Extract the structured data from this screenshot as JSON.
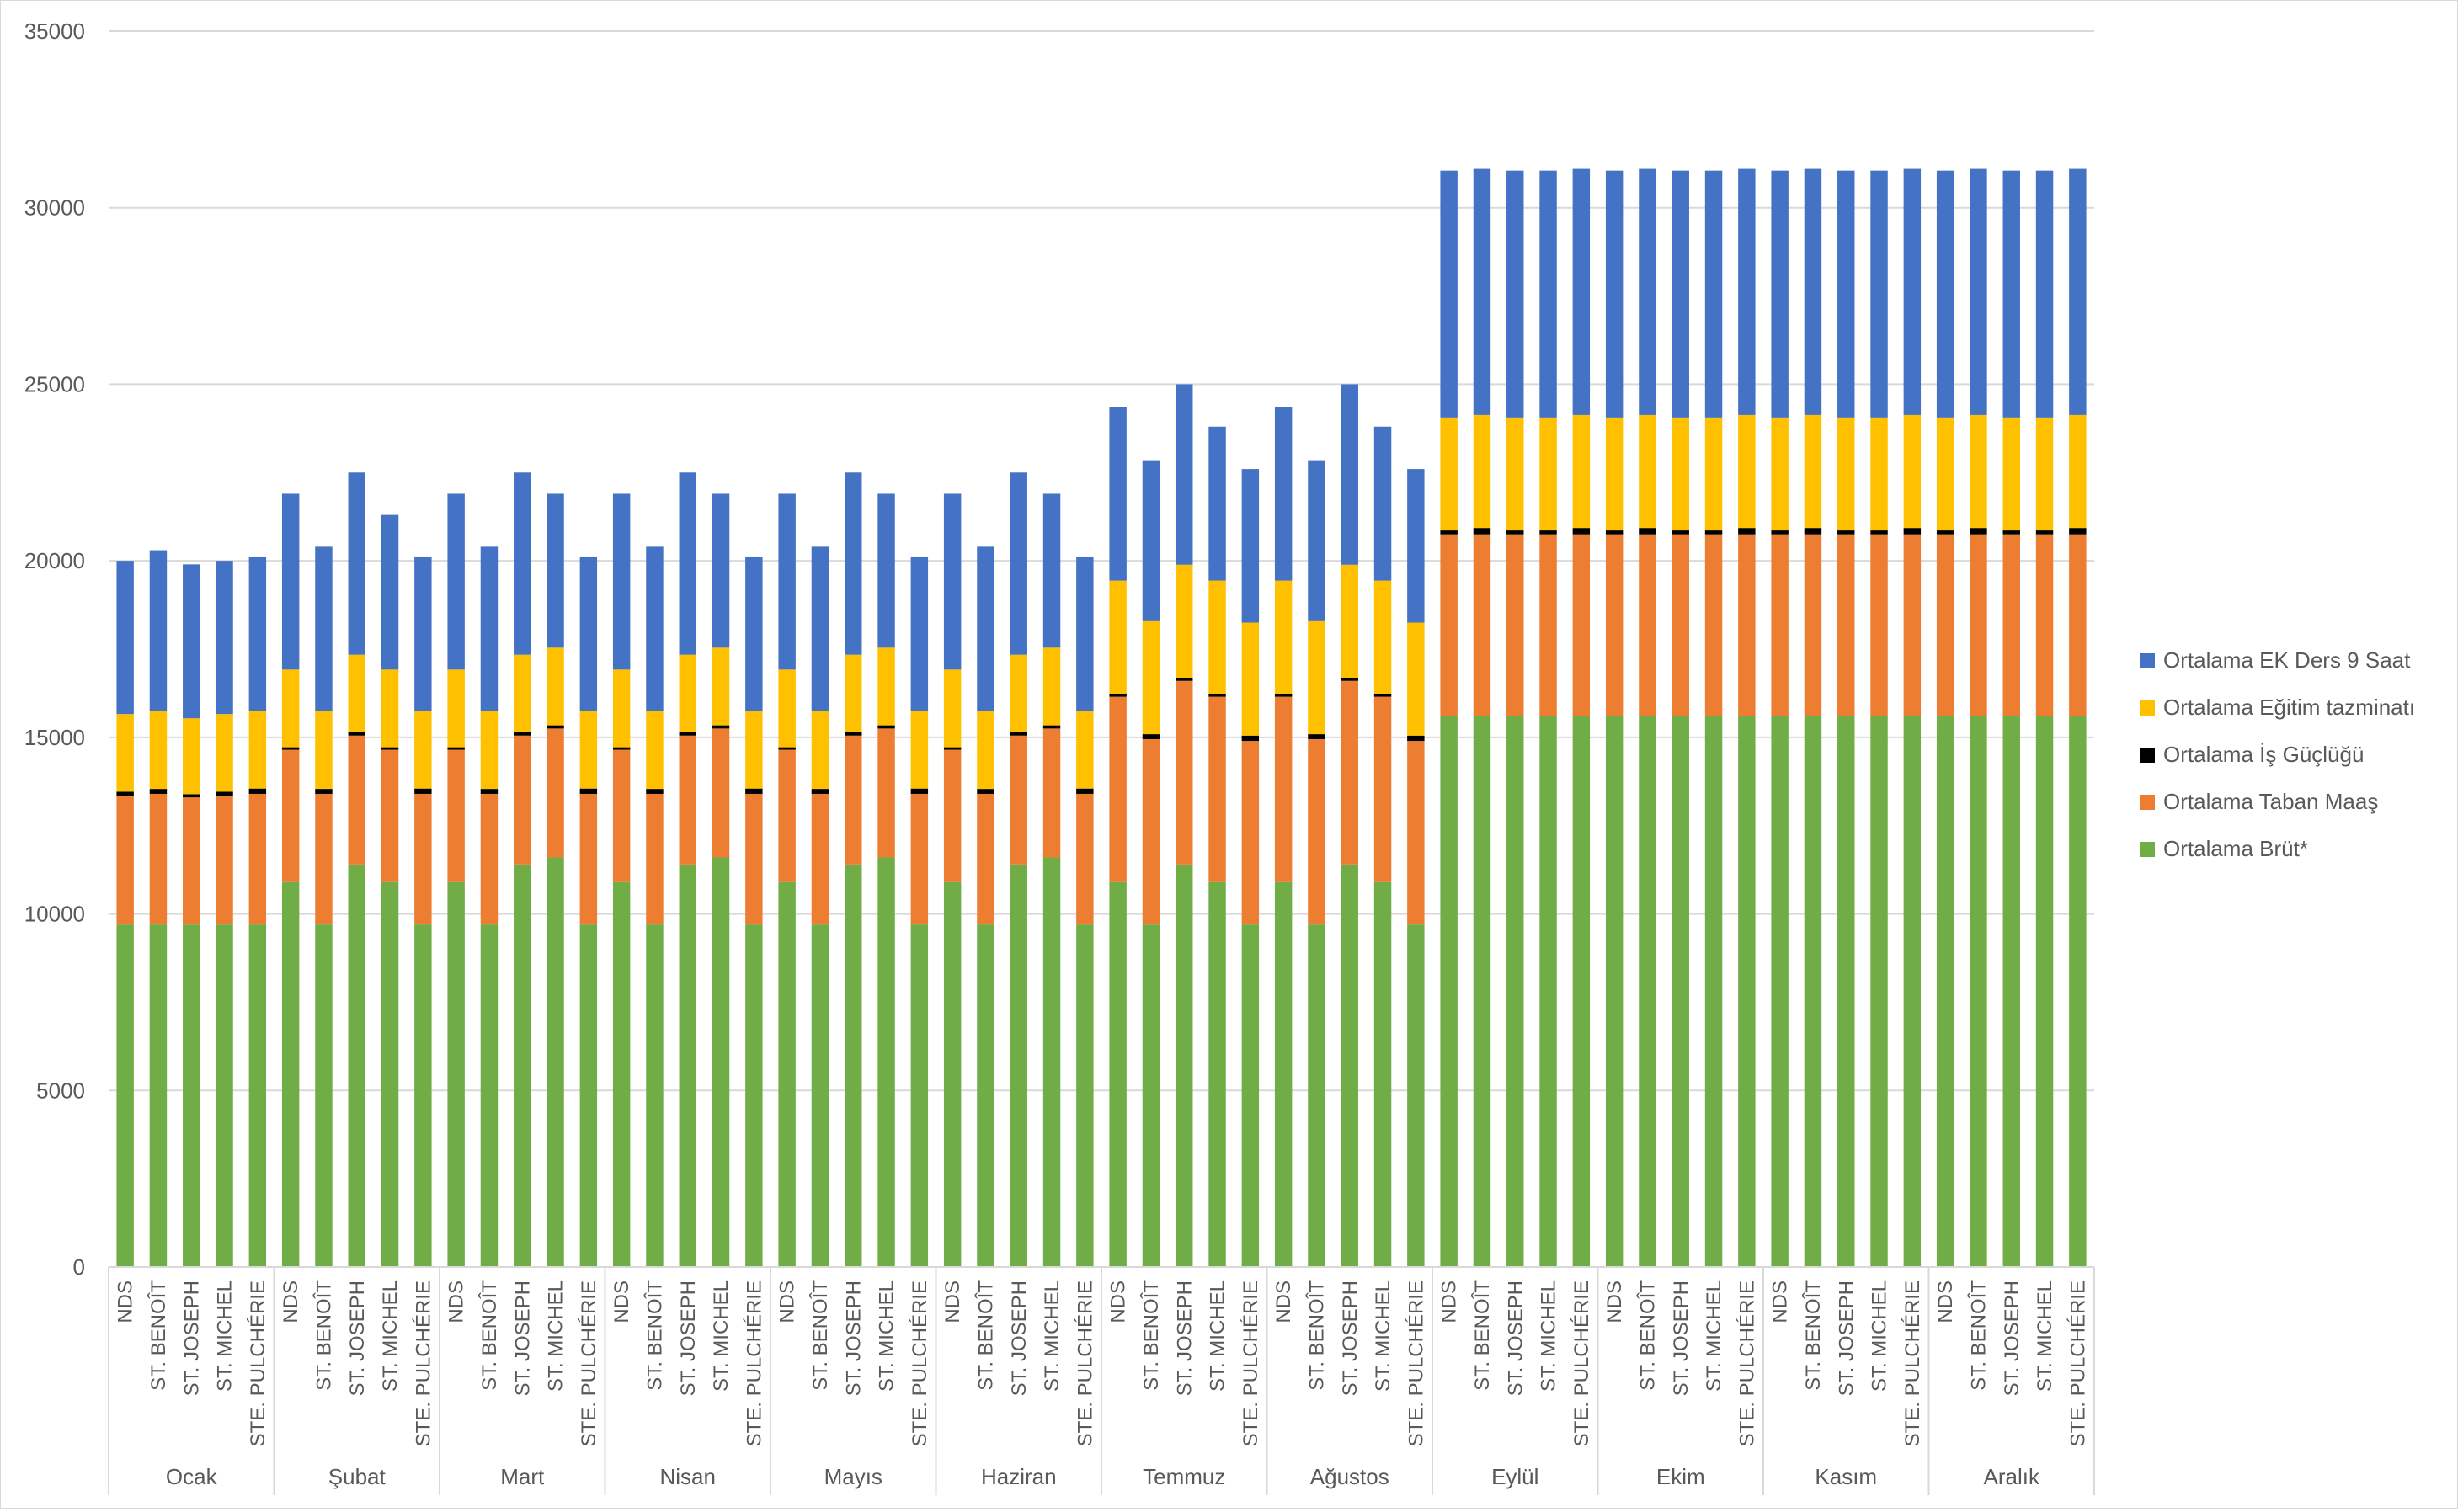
{
  "chart_data": {
    "type": "bar",
    "stacked": true,
    "title": "",
    "xlabel": "",
    "ylabel": "",
    "ylim": [
      0,
      35000
    ],
    "yticks": [
      0,
      5000,
      10000,
      15000,
      20000,
      25000,
      30000,
      35000
    ],
    "grid": true,
    "legend_position": "right",
    "months": [
      "Ocak",
      "Şubat",
      "Mart",
      "Nisan",
      "Mayıs",
      "Haziran",
      "Temmuz",
      "Ağustos",
      "Eylül",
      "Ekim",
      "Kasım",
      "Aralık"
    ],
    "schools": [
      "NDS",
      "ST. BENOÎT",
      "ST. JOSEPH",
      "ST. MICHEL",
      "STE. PULCHÉRIE"
    ],
    "series": [
      {
        "name": "Ortalama Brüt*",
        "color": "#70ad47",
        "values": [
          9700,
          9700,
          9700,
          9700,
          9700,
          10900,
          9700,
          11400,
          10900,
          9700,
          10900,
          9700,
          11400,
          11600,
          9700,
          10900,
          9700,
          11400,
          11600,
          9700,
          10900,
          9700,
          11400,
          11600,
          9700,
          10900,
          9700,
          11400,
          11600,
          9700,
          10900,
          9700,
          11400,
          10900,
          9700,
          10900,
          9700,
          11400,
          10900,
          9700,
          15600,
          15600,
          15600,
          15600,
          15600,
          15600,
          15600,
          15600,
          15600,
          15600,
          15600,
          15600,
          15600,
          15600,
          15600,
          15600,
          15600,
          15600,
          15600,
          15600
        ]
      },
      {
        "name": "Ortalama Taban Maaş",
        "color": "#ed7d31",
        "values": [
          3650,
          3700,
          3600,
          3650,
          3700,
          3750,
          3700,
          3650,
          3750,
          3700,
          3750,
          3700,
          3650,
          3650,
          3700,
          3750,
          3700,
          3650,
          3650,
          3700,
          3750,
          3700,
          3650,
          3650,
          3700,
          3750,
          3700,
          3650,
          3650,
          3700,
          5250,
          5250,
          5200,
          5250,
          5200,
          5250,
          5250,
          5200,
          5250,
          5200,
          5150,
          5150,
          5150,
          5150,
          5150,
          5150,
          5150,
          5150,
          5150,
          5150,
          5150,
          5150,
          5150,
          5150,
          5150,
          5150,
          5150,
          5150,
          5150,
          5150
        ]
      },
      {
        "name": "Ortalama İş Güçlüğü",
        "color": "#000000",
        "values": [
          110,
          140,
          90,
          110,
          150,
          70,
          140,
          90,
          70,
          150,
          70,
          140,
          90,
          90,
          150,
          70,
          140,
          90,
          90,
          150,
          70,
          140,
          90,
          90,
          150,
          70,
          140,
          90,
          90,
          150,
          90,
          140,
          90,
          90,
          150,
          90,
          140,
          90,
          90,
          150,
          110,
          180,
          110,
          110,
          180,
          110,
          180,
          110,
          110,
          180,
          110,
          180,
          110,
          110,
          180,
          110,
          180,
          110,
          110,
          180
        ]
      },
      {
        "name": "Ortalama Eğitim tazminatı",
        "color": "#ffc000",
        "values": [
          2200,
          2200,
          2150,
          2200,
          2200,
          2200,
          2200,
          2200,
          2200,
          2200,
          2200,
          2200,
          2200,
          2200,
          2200,
          2200,
          2200,
          2200,
          2200,
          2200,
          2200,
          2200,
          2200,
          2200,
          2200,
          2200,
          2200,
          2200,
          2200,
          2200,
          3200,
          3200,
          3200,
          3200,
          3200,
          3200,
          3200,
          3200,
          3200,
          3200,
          3200,
          3200,
          3200,
          3200,
          3200,
          3200,
          3200,
          3200,
          3200,
          3200,
          3200,
          3200,
          3200,
          3200,
          3200,
          3200,
          3200,
          3200,
          3200,
          3200
        ]
      },
      {
        "name": "Ortalama EK Ders 9 Saat",
        "color": "#4472c4",
        "values": [
          4340,
          4560,
          4360,
          4340,
          4350,
          4980,
          4660,
          5160,
          4380,
          4350,
          4980,
          4660,
          5160,
          4360,
          4350,
          4980,
          4660,
          5160,
          4360,
          4350,
          4980,
          4660,
          5160,
          4360,
          4350,
          4980,
          4660,
          5160,
          4360,
          4350,
          4910,
          4560,
          5110,
          4360,
          4350,
          4910,
          4560,
          5110,
          4360,
          4350,
          6990,
          6970,
          6990,
          6990,
          6970,
          6990,
          6970,
          6990,
          6990,
          6970,
          6990,
          6970,
          6990,
          6990,
          6970,
          6990,
          6970,
          6990,
          6990,
          6970
        ]
      }
    ]
  }
}
